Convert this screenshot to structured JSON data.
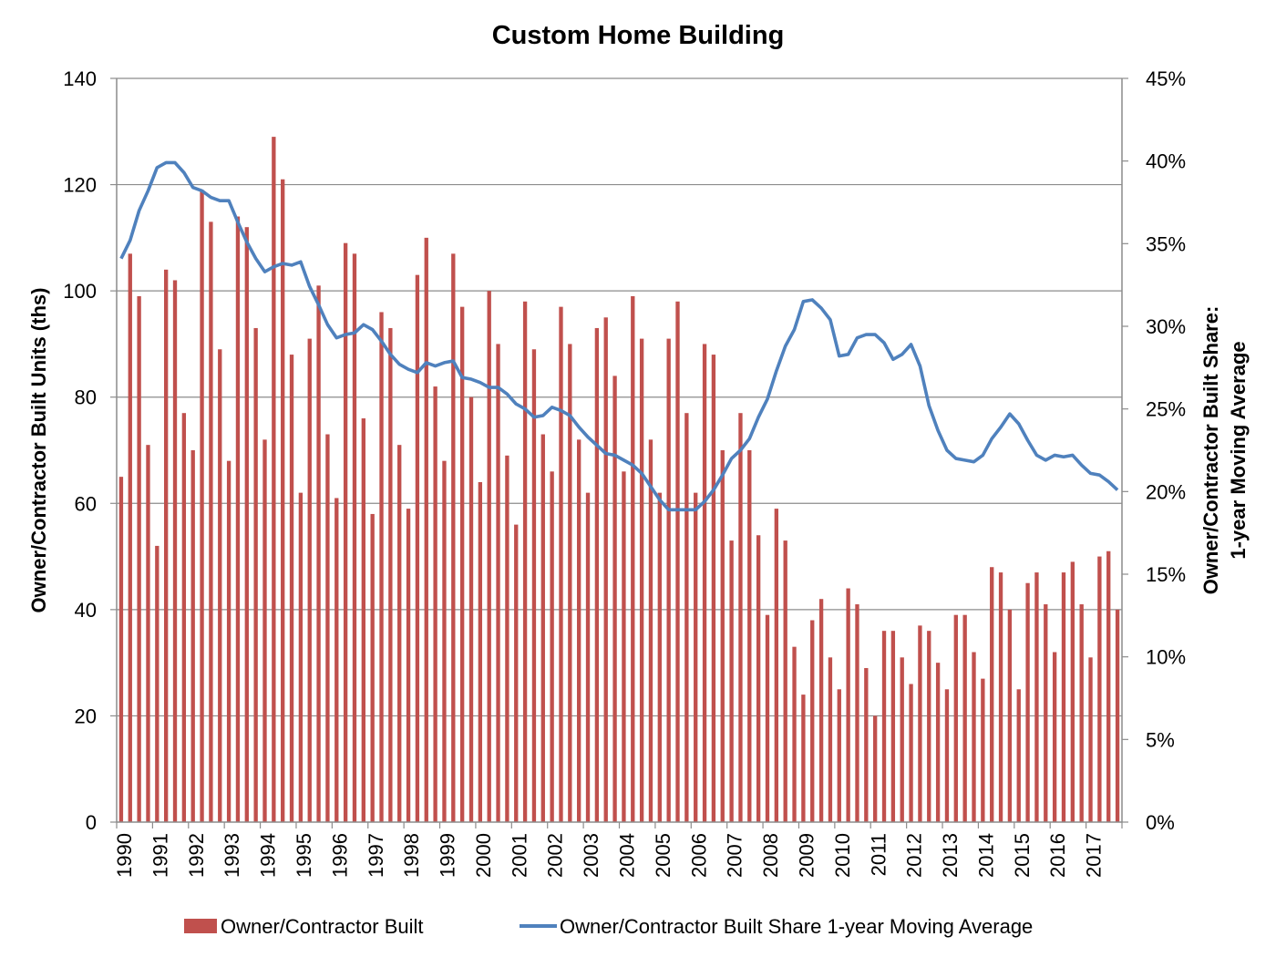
{
  "chart_data": {
    "type": "bar",
    "title": "Custom Home Building",
    "x_tick_labels": [
      "1990",
      "1991",
      "1992",
      "1993",
      "1994",
      "1995",
      "1996",
      "1997",
      "1998",
      "1999",
      "2000",
      "2001",
      "2002",
      "2003",
      "2004",
      "2005",
      "2006",
      "2007",
      "2008",
      "2009",
      "2010",
      "2011",
      "2012",
      "2013",
      "2014",
      "2015",
      "2016",
      "2017"
    ],
    "ylabel_left": "Owner/Contractor Built Units (ths)",
    "ylabel_right_line1": "Owner/Contractor Built Share:",
    "ylabel_right_line2": "1-year Moving Average",
    "ylim_left": [
      0,
      140
    ],
    "yticks_left": [
      "0",
      "20",
      "40",
      "60",
      "80",
      "100",
      "120",
      "140"
    ],
    "ylim_right": [
      0,
      45
    ],
    "yticks_right": [
      "0%",
      "5%",
      "10%",
      "15%",
      "20%",
      "25%",
      "30%",
      "35%",
      "40%",
      "45%"
    ],
    "grid": true,
    "legend_position": "bottom",
    "series": [
      {
        "name": "Owner/Contractor Built",
        "kind": "bar",
        "axis": "left",
        "color": "#c0504d",
        "values": [
          65,
          107,
          99,
          71,
          52,
          104,
          102,
          77,
          70,
          119,
          113,
          89,
          68,
          114,
          112,
          93,
          72,
          129,
          121,
          88,
          62,
          91,
          101,
          73,
          61,
          109,
          107,
          76,
          58,
          96,
          93,
          71,
          59,
          103,
          110,
          82,
          68,
          107,
          97,
          80,
          64,
          100,
          90,
          69,
          56,
          98,
          89,
          73,
          66,
          97,
          90,
          72,
          62,
          93,
          95,
          84,
          66,
          99,
          91,
          72,
          62,
          91,
          98,
          77,
          62,
          90,
          88,
          70,
          53,
          77,
          70,
          54,
          39,
          59,
          53,
          33,
          24,
          38,
          42,
          31,
          25,
          44,
          41,
          29,
          20,
          36,
          36,
          31,
          26,
          37,
          36,
          30,
          25,
          39,
          39,
          32,
          27,
          48,
          47,
          40,
          25,
          45,
          47,
          41,
          32,
          47,
          49,
          41,
          31,
          50,
          51,
          40
        ]
      },
      {
        "name": "Owner/Contractor Built Share 1-year Moving Average",
        "kind": "line",
        "axis": "right",
        "unit": "%",
        "color": "#4f81bd",
        "values": [
          34.1,
          35.2,
          37.0,
          38.2,
          39.6,
          39.9,
          39.9,
          39.3,
          38.4,
          38.2,
          37.8,
          37.6,
          37.6,
          36.3,
          35.1,
          34.1,
          33.3,
          33.6,
          33.8,
          33.7,
          33.9,
          32.4,
          31.3,
          30.1,
          29.3,
          29.5,
          29.6,
          30.1,
          29.8,
          29.1,
          28.3,
          27.7,
          27.4,
          27.2,
          27.8,
          27.6,
          27.8,
          27.9,
          26.9,
          26.8,
          26.6,
          26.3,
          26.3,
          25.9,
          25.3,
          25.0,
          24.5,
          24.6,
          25.1,
          24.9,
          24.6,
          23.9,
          23.3,
          22.8,
          22.3,
          22.2,
          21.9,
          21.6,
          21.1,
          20.3,
          19.5,
          18.9,
          18.9,
          18.9,
          18.9,
          19.4,
          20.1,
          21.0,
          22.0,
          22.5,
          23.2,
          24.5,
          25.6,
          27.3,
          28.8,
          29.8,
          31.5,
          31.6,
          31.1,
          30.4,
          28.2,
          28.3,
          29.3,
          29.5,
          29.5,
          29.0,
          28.0,
          28.3,
          28.9,
          27.6,
          25.2,
          23.7,
          22.5,
          22.0,
          21.9,
          21.8,
          22.2,
          23.2,
          23.9,
          24.7,
          24.1,
          23.1,
          22.2,
          21.9,
          22.2,
          22.1,
          22.2,
          21.6,
          21.1,
          21.0,
          20.6,
          20.1
        ]
      }
    ]
  }
}
